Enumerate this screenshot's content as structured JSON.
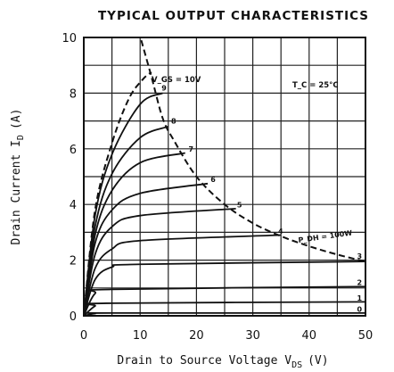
{
  "chart_data": {
    "type": "line",
    "title": "TYPICAL OUTPUT CHARACTERISTICS",
    "xlabel": "Drain to Source Voltage V",
    "xlabel_sub": "DS",
    "xlabel_unit": "(V)",
    "ylabel": "Drain Current I",
    "ylabel_sub": "D",
    "ylabel_unit": "(A)",
    "xlim": [
      0,
      50
    ],
    "ylim": [
      0,
      10
    ],
    "x_ticks": [
      "0",
      "10",
      "20",
      "30",
      "40",
      "50"
    ],
    "y_ticks": [
      "0",
      "2",
      "4",
      "6",
      "8",
      "10"
    ],
    "x_tick_values": [
      0,
      10,
      20,
      30,
      40,
      50
    ],
    "y_tick_values": [
      0,
      2,
      4,
      6,
      8,
      10
    ],
    "grid": true,
    "annotations": {
      "vgs": "V_GS = 10V",
      "tc": "T_C = 25°C",
      "pdh": "P_DH = 100W"
    },
    "series": [
      {
        "name": "0",
        "points": [
          [
            0,
            0
          ],
          [
            2,
            0.08
          ],
          [
            5,
            0.1
          ],
          [
            50,
            0.1
          ]
        ]
      },
      {
        "name": "1",
        "points": [
          [
            0,
            0
          ],
          [
            2,
            0.35
          ],
          [
            4,
            0.45
          ],
          [
            50,
            0.5
          ]
        ]
      },
      {
        "name": "2",
        "points": [
          [
            0,
            0
          ],
          [
            2,
            0.8
          ],
          [
            5,
            0.95
          ],
          [
            50,
            1.05
          ]
        ]
      },
      {
        "name": "3",
        "points": [
          [
            0,
            0
          ],
          [
            2,
            1.3
          ],
          [
            5,
            1.75
          ],
          [
            10,
            1.85
          ],
          [
            50,
            1.95
          ]
        ]
      },
      {
        "name": "4",
        "points": [
          [
            0,
            0
          ],
          [
            2,
            1.7
          ],
          [
            5,
            2.4
          ],
          [
            10,
            2.7
          ],
          [
            35,
            2.9
          ]
        ]
      },
      {
        "name": "5",
        "points": [
          [
            0,
            0
          ],
          [
            2,
            2.2
          ],
          [
            5,
            3.2
          ],
          [
            10,
            3.6
          ],
          [
            27,
            3.85
          ]
        ]
      },
      {
        "name": "6",
        "points": [
          [
            0,
            0
          ],
          [
            2,
            2.6
          ],
          [
            5,
            3.8
          ],
          [
            10,
            4.4
          ],
          [
            22,
            4.75
          ]
        ]
      },
      {
        "name": "7",
        "points": [
          [
            0,
            0
          ],
          [
            2,
            2.9
          ],
          [
            5,
            4.5
          ],
          [
            10,
            5.5
          ],
          [
            18,
            5.85
          ]
        ]
      },
      {
        "name": "8",
        "points": [
          [
            0,
            0
          ],
          [
            2,
            3.2
          ],
          [
            5,
            5.1
          ],
          [
            10,
            6.4
          ],
          [
            15,
            6.8
          ]
        ]
      },
      {
        "name": "9",
        "points": [
          [
            0,
            0
          ],
          [
            2,
            3.6
          ],
          [
            5,
            5.8
          ],
          [
            10,
            7.6
          ],
          [
            14,
            8.0
          ]
        ]
      },
      {
        "name": "10",
        "dashed": true,
        "points": [
          [
            0,
            0
          ],
          [
            2,
            3.8
          ],
          [
            5,
            6.2
          ],
          [
            8,
            7.8
          ],
          [
            10.5,
            8.5
          ],
          [
            12,
            8.75
          ]
        ]
      },
      {
        "name": "power_limit",
        "dashed": true,
        "points": [
          [
            10.2,
            9.9
          ],
          [
            12,
            8.6
          ],
          [
            14,
            7.1
          ],
          [
            16,
            6.3
          ],
          [
            20,
            5.0
          ],
          [
            25,
            4.0
          ],
          [
            30,
            3.33
          ],
          [
            35,
            2.86
          ],
          [
            40,
            2.5
          ],
          [
            45,
            2.2
          ],
          [
            50,
            1.95
          ]
        ]
      }
    ],
    "curve_labels": [
      {
        "text": "9",
        "x": 13.8,
        "y": 8.1
      },
      {
        "text": "8",
        "x": 15.5,
        "y": 6.9
      },
      {
        "text": "7",
        "x": 18.6,
        "y": 5.9
      },
      {
        "text": "6",
        "x": 22.5,
        "y": 4.8
      },
      {
        "text": "5",
        "x": 27.2,
        "y": 3.9
      },
      {
        "text": "4",
        "x": 34.5,
        "y": 2.95
      },
      {
        "text": "3",
        "x": 48.5,
        "y": 2.05
      },
      {
        "text": "2",
        "x": 48.5,
        "y": 1.1
      },
      {
        "text": "1",
        "x": 48.5,
        "y": 0.55
      },
      {
        "text": "0",
        "x": 48.5,
        "y": 0.15
      }
    ]
  }
}
